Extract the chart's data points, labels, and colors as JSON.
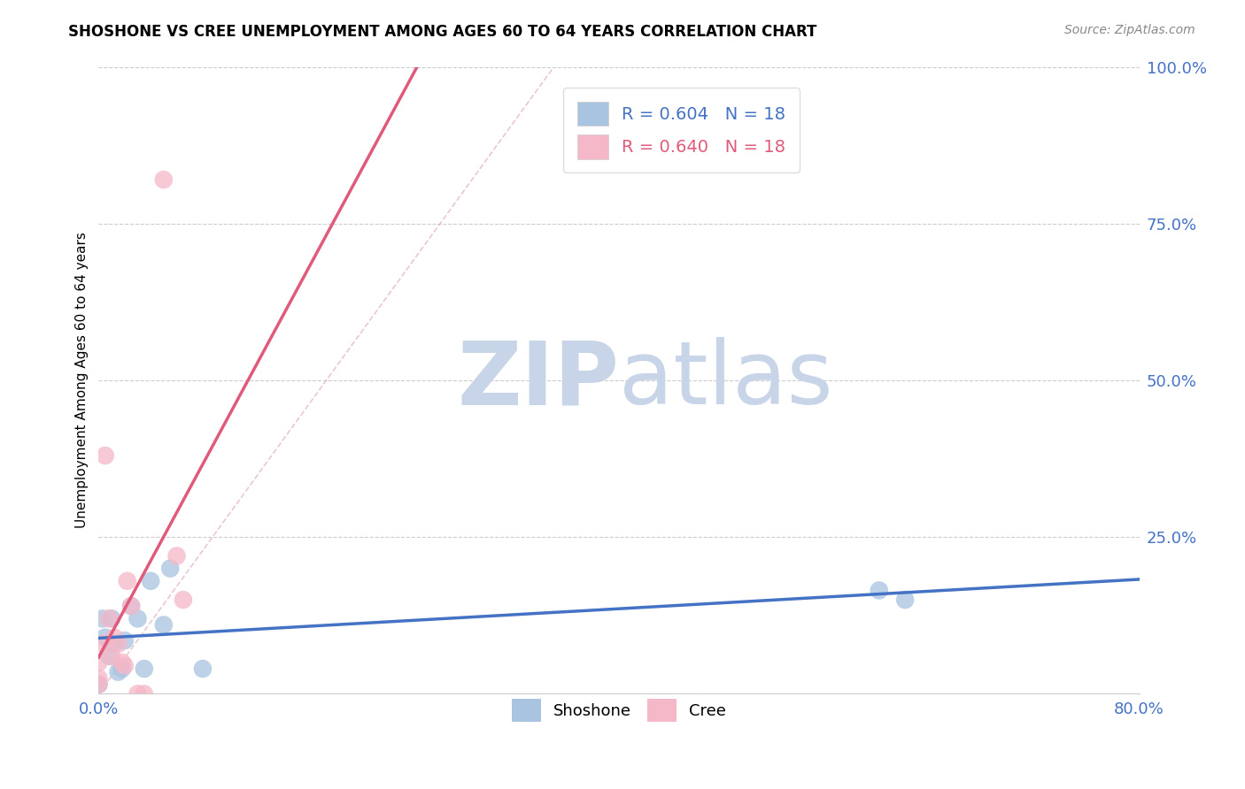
{
  "title": "SHOSHONE VS CREE UNEMPLOYMENT AMONG AGES 60 TO 64 YEARS CORRELATION CHART",
  "source": "Source: ZipAtlas.com",
  "ylabel": "Unemployment Among Ages 60 to 64 years",
  "xlim": [
    0.0,
    0.8
  ],
  "ylim": [
    0.0,
    1.0
  ],
  "xticks": [
    0.0,
    0.2,
    0.4,
    0.6,
    0.8
  ],
  "xtick_labels": [
    "0.0%",
    "",
    "",
    "",
    "80.0%"
  ],
  "yticks": [
    0.0,
    0.25,
    0.5,
    0.75,
    1.0
  ],
  "ytick_labels": [
    "",
    "25.0%",
    "50.0%",
    "75.0%",
    "100.0%"
  ],
  "shoshone_x": [
    0.0,
    0.003,
    0.005,
    0.008,
    0.01,
    0.012,
    0.015,
    0.018,
    0.02,
    0.025,
    0.03,
    0.035,
    0.04,
    0.05,
    0.055,
    0.08,
    0.6,
    0.62
  ],
  "shoshone_y": [
    0.015,
    0.12,
    0.09,
    0.06,
    0.12,
    0.08,
    0.035,
    0.04,
    0.085,
    0.14,
    0.12,
    0.04,
    0.18,
    0.11,
    0.2,
    0.04,
    0.165,
    0.15
  ],
  "cree_x": [
    0.0,
    0.0,
    0.0,
    0.003,
    0.005,
    0.008,
    0.01,
    0.012,
    0.015,
    0.018,
    0.02,
    0.022,
    0.025,
    0.03,
    0.035,
    0.05,
    0.06,
    0.065
  ],
  "cree_y": [
    0.015,
    0.025,
    0.05,
    0.08,
    0.38,
    0.12,
    0.06,
    0.09,
    0.08,
    0.05,
    0.045,
    0.18,
    0.14,
    0.0,
    0.0,
    0.82,
    0.22,
    0.15
  ],
  "shoshone_color": "#a8c4e0",
  "cree_color": "#f4b8c8",
  "shoshone_line_color": "#4472c4",
  "cree_line_color": "#e05a7a",
  "diagonal_color": "#e8b0c0",
  "watermark_zip_color": "#c8d8ec",
  "watermark_atlas_color": "#c8d8ec",
  "R_shoshone": 0.604,
  "N_shoshone": 18,
  "R_cree": 0.64,
  "N_cree": 18
}
